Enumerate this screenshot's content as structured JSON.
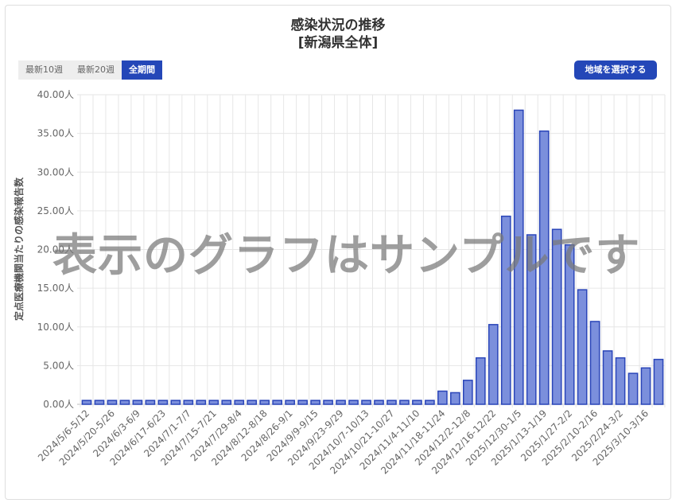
{
  "header": {
    "title": "感染状況の推移",
    "subtitle": "[新潟県全体]"
  },
  "period_tabs": [
    {
      "label": "最新10週",
      "active": false
    },
    {
      "label": "最新20週",
      "active": false
    },
    {
      "label": "全期間",
      "active": true
    }
  ],
  "region_button": {
    "label": "地域を選択する"
  },
  "watermark": "表示のグラフはサンプルです",
  "colors": {
    "bar_fill": "#7b8fdc",
    "bar_stroke": "#2a45b8",
    "accent": "#2447b8"
  },
  "chart_data": {
    "type": "bar",
    "ylabel": "定点医療機関当たりの感染報告数",
    "ylim": [
      0,
      40
    ],
    "yticks": [
      "0.00人",
      "5.00人",
      "10.00人",
      "15.00人",
      "20.00人",
      "25.00人",
      "30.00人",
      "35.00人",
      "40.00人"
    ],
    "tick_labels": [
      "2024/5/6-5/12",
      "2024/5/20-5/26",
      "2024/6/3-6/9",
      "2024/6/17-6/23",
      "2024/7/1-7/7",
      "2024/7/15-7/21",
      "2024/7/29-8/4",
      "2024/8/12-8/18",
      "2024/8/26-9/1",
      "2024/9/9-9/15",
      "2024/9/23-9/29",
      "2024/10/7-10/13",
      "2024/10/21-10/27",
      "2024/11/4-11/10",
      "2024/11/18-11/24",
      "2024/12/2-12/8",
      "2024/12/16-12/22",
      "2025/12/30-1/5",
      "2025/1/13-1/19",
      "2025/1/27-2/2",
      "2025/2/10-2/16",
      "2025/2/24-3/2",
      "2025/3/10-3/16"
    ],
    "values": [
      0.5,
      0.5,
      0.5,
      0.5,
      0.5,
      0.5,
      0.5,
      0.5,
      0.5,
      0.5,
      0.5,
      0.5,
      0.5,
      0.5,
      0.5,
      0.5,
      0.5,
      0.5,
      0.5,
      0.5,
      0.5,
      0.5,
      0.5,
      0.5,
      0.5,
      0.5,
      0.5,
      0.5,
      1.7,
      1.5,
      3.1,
      6.0,
      10.3,
      24.3,
      38.0,
      21.9,
      35.3,
      22.6,
      20.6,
      14.8,
      10.7,
      6.9,
      6.0,
      4.0,
      4.7,
      5.8
    ],
    "grid": true
  }
}
